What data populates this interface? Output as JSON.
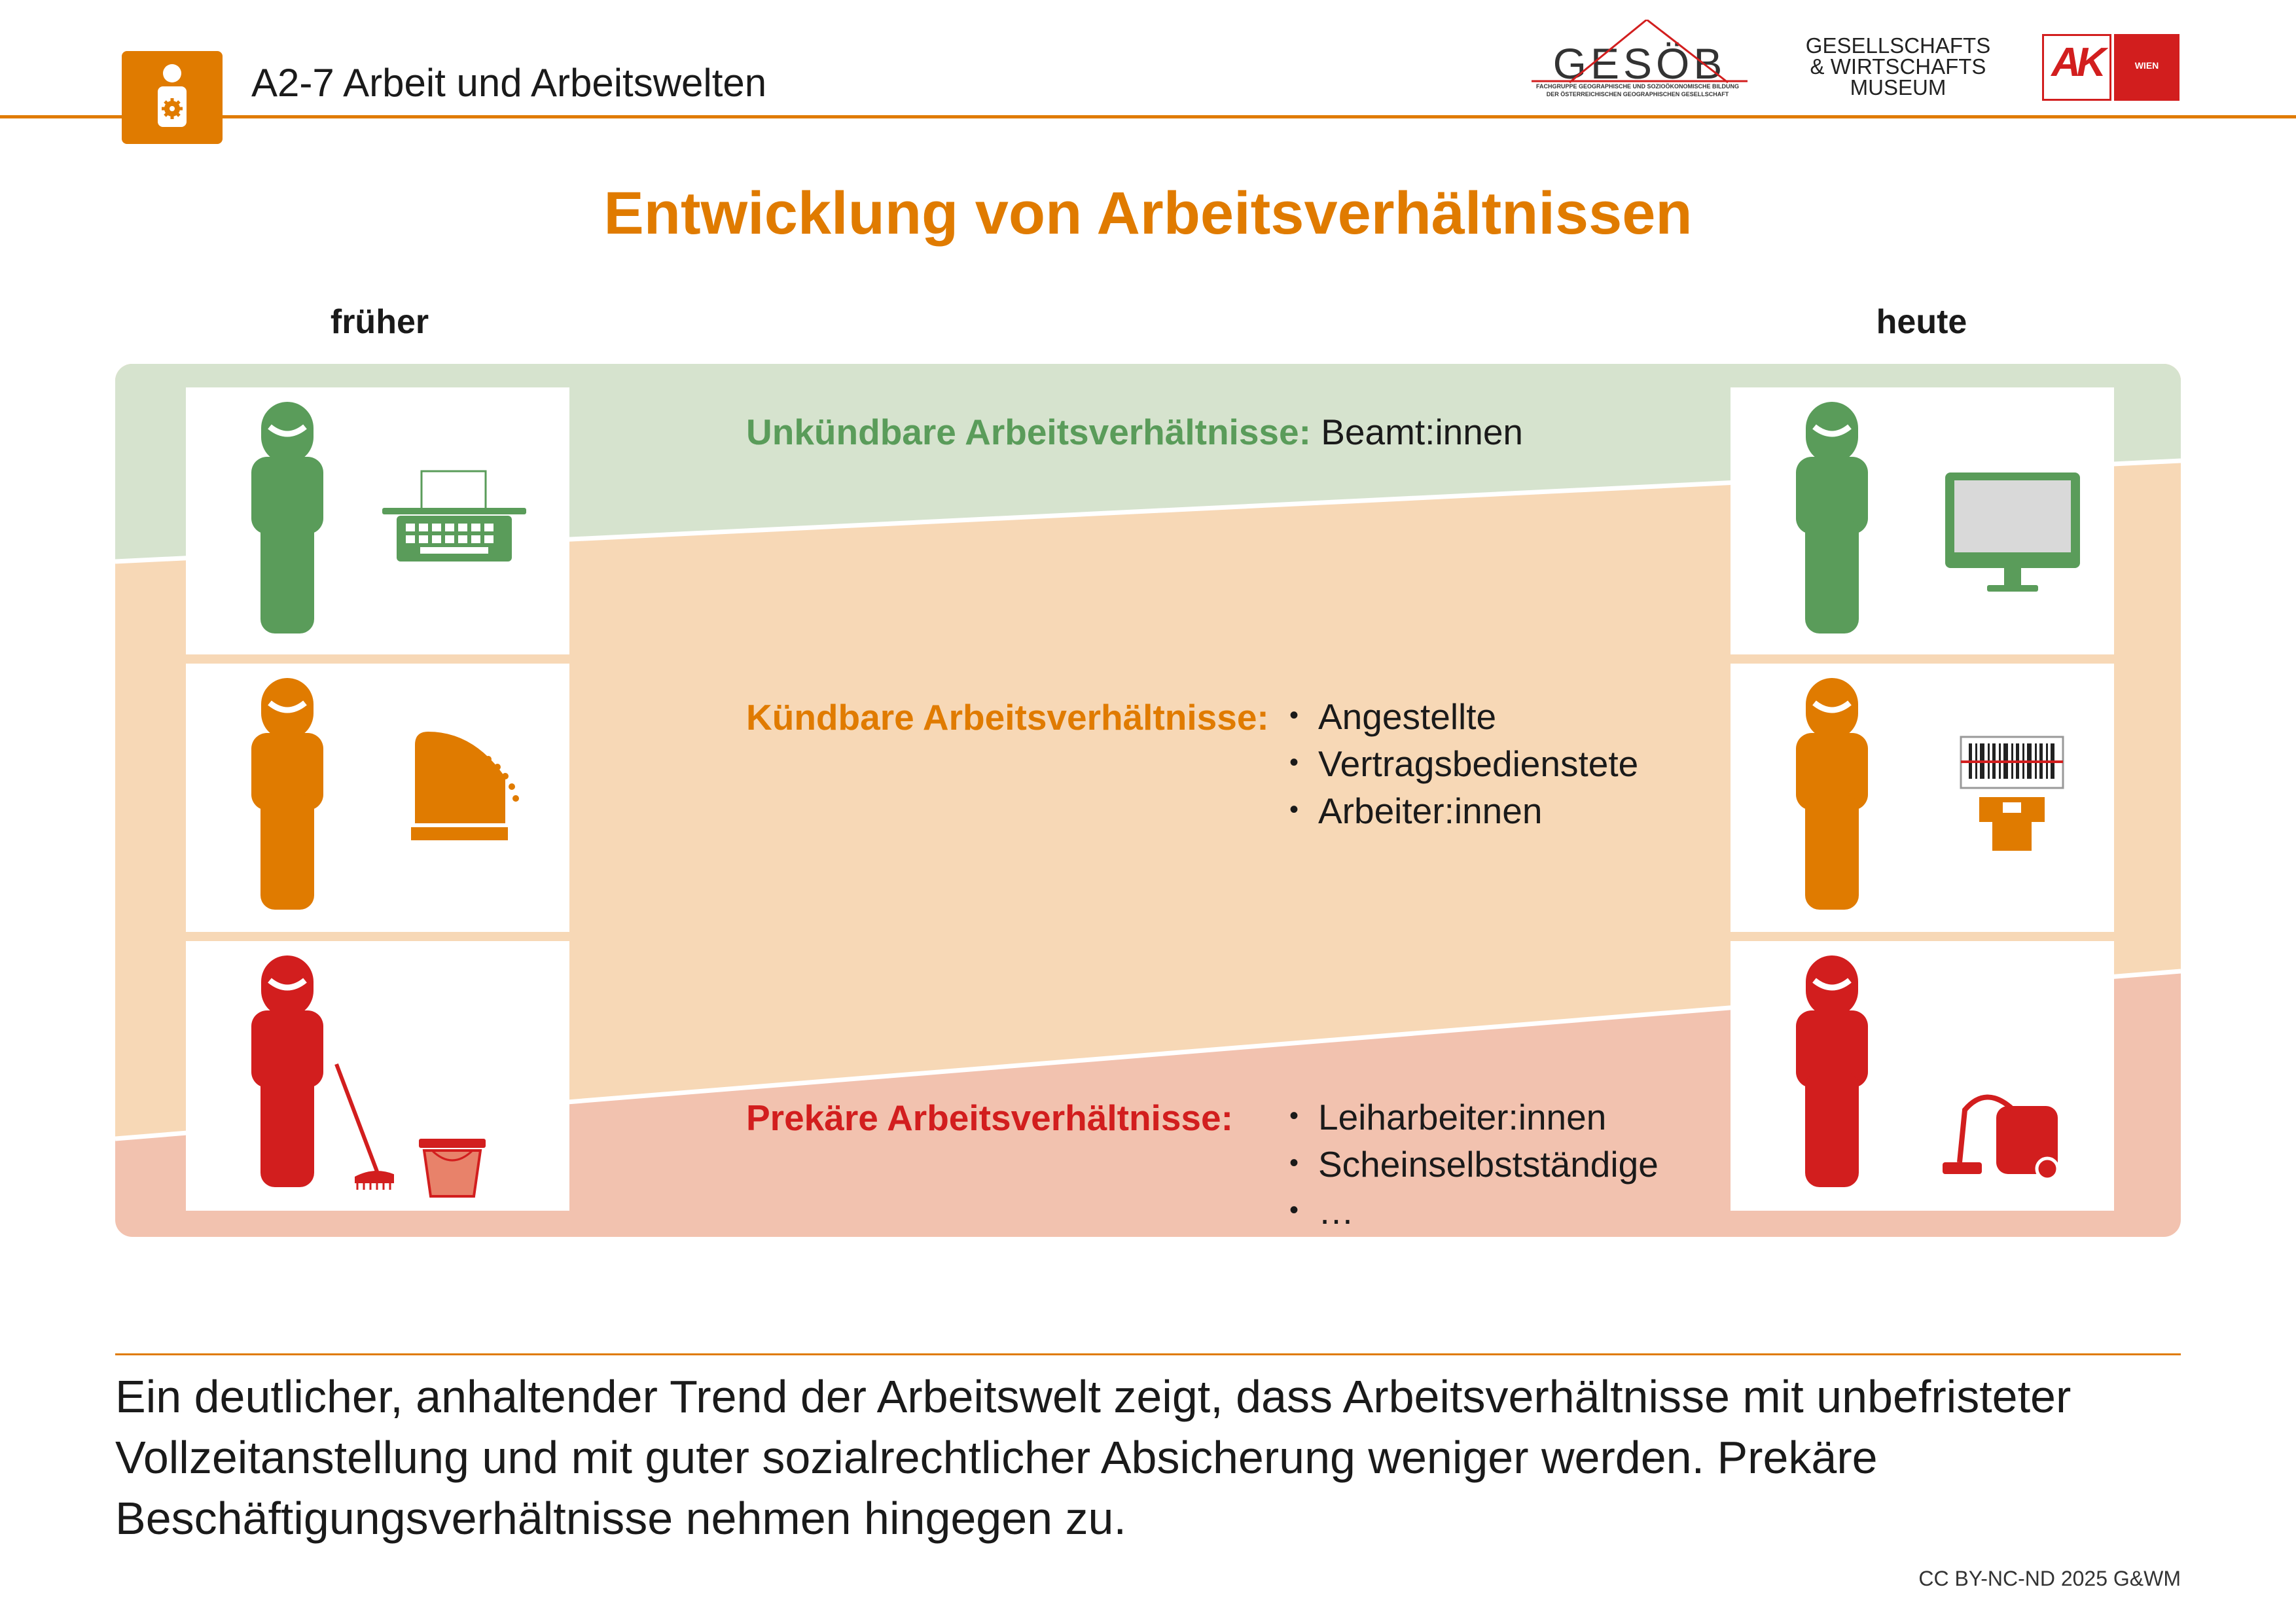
{
  "header": {
    "title": "A2-7 Arbeit und Arbeitswelten",
    "logos": {
      "gesoeb": {
        "name": "GESÖB",
        "subline": [
          "FACHGRUPPE GEOGRAPHISCHE UND SOZIOÖKONOMISCHE BILDUNG",
          "DER ÖSTERREICHISCHEN GEOGRAPHISCHEN GESELLSCHAFT"
        ]
      },
      "museum": [
        "GESELLSCHAFTS",
        "& WIRTSCHAFTS",
        "MUSEUM"
      ],
      "ak": {
        "mark": "AK",
        "city": "WIEN"
      }
    }
  },
  "page_title": "Entwicklung von Arbeitsverhältnissen",
  "time_labels": {
    "past": "früher",
    "present": "heute"
  },
  "categories": {
    "unkuendbar": {
      "label": "Unkündbare Arbeitsverhältnisse:",
      "example": "Beamt:innen",
      "color": "#5A9C5A",
      "band_color": "#D6E3CE",
      "icons": {
        "past": "typewriter-icon",
        "present": "monitor-icon"
      }
    },
    "kuendbar": {
      "label": "Kündbare Arbeitsverhältnisse:",
      "items": [
        "Angestellte",
        "Vertragsbedienstete",
        "Arbeiter:innen"
      ],
      "color": "#E07B00",
      "band_color": "#F7D8B6",
      "icons": {
        "past": "cash-register-icon",
        "present": "barcode-scanner-icon"
      }
    },
    "prekaer": {
      "label": "Prekäre Arbeitsverhältnisse:",
      "items": [
        "Leiharbeiter:innen",
        "Scheinselbstständige",
        "…"
      ],
      "color": "#D21E1E",
      "band_color": "#F2C2AF",
      "icons": {
        "past": "broom-bucket-icon",
        "present": "vacuum-cleaner-icon"
      }
    }
  },
  "footer": {
    "text": "Ein deutlicher, anhaltender Trend der Arbeitswelt zeigt, dass Arbeitsverhältnisse mit unbefristeter Vollzeitanstellung und mit guter sozialrechtlicher Absicherung weniger werden. Prekäre Beschäftigungsverhältnisse nehmen hingegen zu.",
    "license": "CC BY-NC-ND 2025 G&WM"
  },
  "colors": {
    "accent": "#E07B00",
    "green": "#5A9C5A",
    "orange": "#E07B00",
    "red": "#D21E1E"
  }
}
